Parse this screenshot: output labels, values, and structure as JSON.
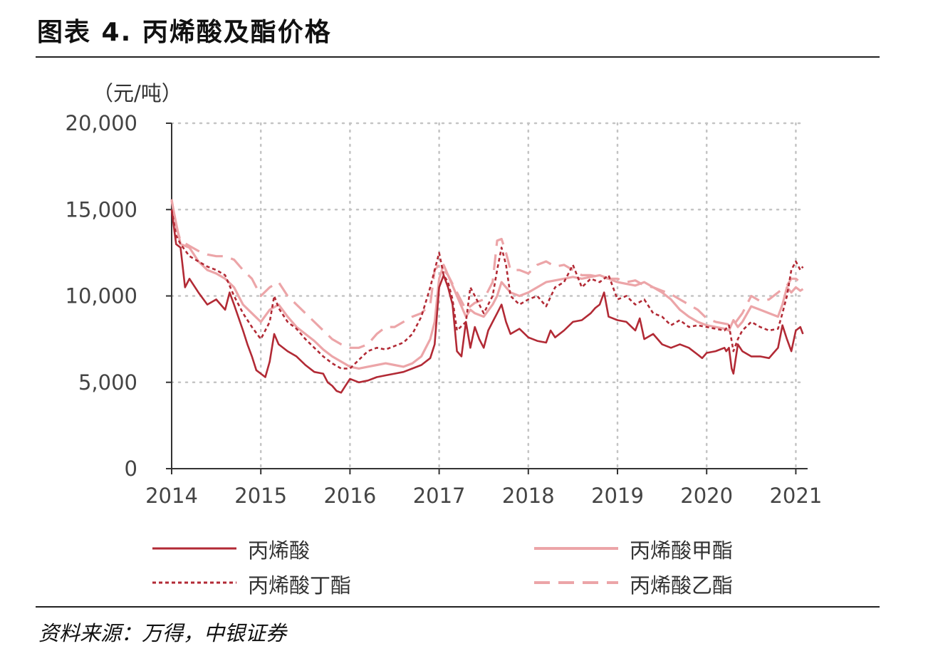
{
  "title": "图表 4. 丙烯酸及酯价格",
  "source": "资料来源：万得，中银证券",
  "chart_data": {
    "type": "line",
    "ylabel": "（元/吨）",
    "ylim": [
      0,
      20000
    ],
    "xlim": [
      2014.0,
      2021.1
    ],
    "y_ticks": [
      0,
      5000,
      10000,
      15000,
      20000
    ],
    "y_tick_labels": [
      "0",
      "5,000",
      "10,000",
      "15,000",
      "20,000"
    ],
    "x_ticks": [
      2014,
      2015,
      2016,
      2017,
      2018,
      2019,
      2020,
      2021
    ],
    "x_tick_labels": [
      "2014",
      "2015",
      "2016",
      "2017",
      "2018",
      "2019",
      "2020",
      "2021"
    ],
    "grid": true,
    "legend_position": "bottom",
    "series": [
      {
        "name": "丙烯酸",
        "color": "#b22a35",
        "style": "solid",
        "x": [
          2014.0,
          2014.05,
          2014.1,
          2014.15,
          2014.2,
          2014.3,
          2014.4,
          2014.5,
          2014.6,
          2014.65,
          2014.7,
          2014.8,
          2014.85,
          2014.9,
          2014.95,
          2015.0,
          2015.05,
          2015.1,
          2015.15,
          2015.2,
          2015.3,
          2015.4,
          2015.5,
          2015.6,
          2015.7,
          2015.75,
          2015.8,
          2015.85,
          2015.9,
          2015.95,
          2016.0,
          2016.1,
          2016.2,
          2016.3,
          2016.4,
          2016.5,
          2016.6,
          2016.7,
          2016.8,
          2016.9,
          2016.95,
          2017.0,
          2017.05,
          2017.1,
          2017.15,
          2017.2,
          2017.25,
          2017.3,
          2017.35,
          2017.4,
          2017.45,
          2017.5,
          2017.55,
          2017.6,
          2017.65,
          2017.7,
          2017.75,
          2017.8,
          2017.9,
          2018.0,
          2018.1,
          2018.2,
          2018.25,
          2018.3,
          2018.4,
          2018.5,
          2018.6,
          2018.7,
          2018.75,
          2018.8,
          2018.85,
          2018.9,
          2019.0,
          2019.1,
          2019.2,
          2019.25,
          2019.3,
          2019.4,
          2019.5,
          2019.6,
          2019.7,
          2019.8,
          2019.9,
          2019.95,
          2020.0,
          2020.1,
          2020.2,
          2020.22,
          2020.25,
          2020.28,
          2020.3,
          2020.35,
          2020.4,
          2020.5,
          2020.6,
          2020.7,
          2020.75,
          2020.8,
          2020.85,
          2020.9,
          2020.95,
          2021.0,
          2021.05,
          2021.08
        ],
        "values": [
          15000,
          13000,
          12800,
          10500,
          11000,
          10200,
          9500,
          9800,
          9200,
          10200,
          9500,
          8000,
          7200,
          6500,
          5700,
          5500,
          5300,
          6200,
          7800,
          7200,
          6800,
          6500,
          6000,
          5600,
          5500,
          5000,
          4800,
          4500,
          4400,
          4800,
          5200,
          5000,
          5100,
          5300,
          5400,
          5500,
          5600,
          5800,
          6000,
          6400,
          7200,
          10500,
          11200,
          10500,
          9500,
          6800,
          6500,
          8500,
          7000,
          8200,
          7500,
          7000,
          8000,
          8500,
          9000,
          9500,
          8500,
          7800,
          8100,
          7600,
          7400,
          7300,
          8000,
          7600,
          8000,
          8500,
          8600,
          9000,
          9300,
          9500,
          10200,
          8800,
          8600,
          8500,
          8000,
          8700,
          7500,
          7800,
          7200,
          7000,
          7200,
          7000,
          6600,
          6400,
          6700,
          6800,
          7000,
          6800,
          7000,
          5800,
          5500,
          7200,
          6800,
          6500,
          6500,
          6400,
          6700,
          7000,
          8300,
          7500,
          6800,
          8000,
          8200,
          7800
        ]
      },
      {
        "name": "丙烯酸甲酯",
        "color": "#eca5a8",
        "style": "solid",
        "x": [
          2014.0,
          2014.05,
          2014.1,
          2014.2,
          2014.3,
          2014.4,
          2014.5,
          2014.6,
          2014.7,
          2014.8,
          2014.9,
          2015.0,
          2015.1,
          2015.2,
          2015.3,
          2015.4,
          2015.5,
          2015.6,
          2015.7,
          2015.8,
          2015.9,
          2016.0,
          2016.1,
          2016.2,
          2016.3,
          2016.4,
          2016.5,
          2016.6,
          2016.7,
          2016.8,
          2016.9,
          2016.95,
          2017.0,
          2017.05,
          2017.1,
          2017.2,
          2017.3,
          2017.35,
          2017.4,
          2017.5,
          2017.6,
          2017.65,
          2017.7,
          2017.75,
          2017.8,
          2017.9,
          2018.0,
          2018.1,
          2018.2,
          2018.3,
          2018.4,
          2018.5,
          2018.6,
          2018.7,
          2018.8,
          2018.9,
          2019.0,
          2019.1,
          2019.2,
          2019.3,
          2019.4,
          2019.5,
          2019.6,
          2019.7,
          2019.8,
          2019.9,
          2020.0,
          2020.1,
          2020.2,
          2020.25,
          2020.3,
          2020.35,
          2020.4,
          2020.5,
          2020.6,
          2020.7,
          2020.8,
          2020.85,
          2020.9,
          2020.95,
          2021.0,
          2021.05,
          2021.08
        ],
        "values": [
          15500,
          14200,
          13000,
          12800,
          12000,
          11500,
          11300,
          11000,
          10500,
          9500,
          9000,
          8500,
          9200,
          9500,
          8800,
          8200,
          7800,
          7400,
          6900,
          6500,
          6200,
          5900,
          5800,
          5900,
          6000,
          6100,
          6000,
          5900,
          6100,
          6500,
          7500,
          8500,
          11000,
          11800,
          11200,
          10000,
          8800,
          9200,
          9000,
          8800,
          9500,
          10000,
          10800,
          10500,
          10200,
          10000,
          10200,
          10500,
          10800,
          10900,
          11000,
          11100,
          11000,
          11100,
          11200,
          11000,
          10800,
          10700,
          10600,
          10800,
          10500,
          10200,
          9800,
          9200,
          8800,
          8500,
          8300,
          8200,
          8100,
          8000,
          8600,
          8200,
          8500,
          9400,
          9200,
          9000,
          8800,
          9500,
          10500,
          10200,
          10500,
          10300,
          10400
        ]
      },
      {
        "name": "丙烯酸丁酯",
        "color": "#b22a35",
        "style": "dotted",
        "x": [
          2014.0,
          2014.05,
          2014.1,
          2014.2,
          2014.3,
          2014.4,
          2014.5,
          2014.6,
          2014.7,
          2014.8,
          2014.9,
          2015.0,
          2015.1,
          2015.15,
          2015.2,
          2015.3,
          2015.4,
          2015.5,
          2015.6,
          2015.7,
          2015.8,
          2015.9,
          2016.0,
          2016.1,
          2016.2,
          2016.3,
          2016.4,
          2016.5,
          2016.6,
          2016.7,
          2016.8,
          2016.9,
          2016.95,
          2017.0,
          2017.05,
          2017.1,
          2017.15,
          2017.2,
          2017.3,
          2017.35,
          2017.4,
          2017.5,
          2017.6,
          2017.65,
          2017.7,
          2017.75,
          2017.8,
          2017.9,
          2018.0,
          2018.1,
          2018.2,
          2018.3,
          2018.4,
          2018.5,
          2018.6,
          2018.7,
          2018.8,
          2018.9,
          2019.0,
          2019.1,
          2019.2,
          2019.3,
          2019.4,
          2019.5,
          2019.6,
          2019.7,
          2019.8,
          2019.9,
          2020.0,
          2020.1,
          2020.2,
          2020.25,
          2020.3,
          2020.35,
          2020.4,
          2020.5,
          2020.6,
          2020.7,
          2020.8,
          2020.85,
          2020.9,
          2020.95,
          2021.0,
          2021.05,
          2021.08
        ],
        "values": [
          15000,
          13500,
          13000,
          12300,
          12000,
          11700,
          11500,
          11200,
          10000,
          9000,
          8200,
          7500,
          8500,
          10000,
          9300,
          8500,
          8100,
          7500,
          7000,
          6500,
          6100,
          5800,
          5800,
          6300,
          6800,
          7000,
          6900,
          7100,
          7300,
          7800,
          8800,
          10500,
          11500,
          12500,
          11200,
          10800,
          9800,
          8000,
          8500,
          10500,
          10000,
          9000,
          10000,
          11500,
          12800,
          11800,
          10000,
          9500,
          9800,
          10000,
          9400,
          10500,
          10800,
          11800,
          10500,
          11000,
          10800,
          11200,
          9800,
          10000,
          9500,
          9800,
          9000,
          8800,
          8300,
          8600,
          8200,
          8300,
          8200,
          8100,
          8000,
          8300,
          6800,
          7500,
          8000,
          8500,
          8200,
          8000,
          8100,
          9000,
          10000,
          11500,
          12000,
          11500,
          11700
        ]
      },
      {
        "name": "丙烯酸乙酯",
        "color": "#eca5a8",
        "style": "dashed",
        "x": [
          2014.0,
          2014.05,
          2014.1,
          2014.2,
          2014.3,
          2014.4,
          2014.5,
          2014.6,
          2014.7,
          2014.8,
          2014.9,
          2015.0,
          2015.1,
          2015.2,
          2015.3,
          2015.4,
          2015.5,
          2015.6,
          2015.7,
          2015.8,
          2015.9,
          2016.0,
          2016.1,
          2016.2,
          2016.3,
          2016.4,
          2016.5,
          2016.6,
          2016.7,
          2016.8,
          2016.9,
          2016.95,
          2017.0,
          2017.05,
          2017.1,
          2017.2,
          2017.3,
          2017.4,
          2017.5,
          2017.6,
          2017.65,
          2017.7,
          2017.75,
          2017.8,
          2017.9,
          2018.0,
          2018.1,
          2018.2,
          2018.3,
          2018.4,
          2018.5,
          2018.6,
          2018.7,
          2018.8,
          2018.9,
          2019.0,
          2019.1,
          2019.2,
          2019.3,
          2019.4,
          2019.5,
          2019.6,
          2019.7,
          2019.8,
          2019.9,
          2020.0,
          2020.1,
          2020.2,
          2020.3,
          2020.4,
          2020.5,
          2020.6,
          2020.7,
          2020.8,
          2020.9,
          2020.95,
          2021.0,
          2021.05,
          2021.08
        ],
        "values": [
          15600,
          14000,
          13200,
          12900,
          12600,
          12400,
          12300,
          12300,
          12100,
          11500,
          11000,
          10000,
          10500,
          10800,
          10000,
          9500,
          9000,
          8500,
          8000,
          7500,
          7200,
          7000,
          7000,
          7200,
          7800,
          8200,
          8200,
          8500,
          8800,
          9000,
          9500,
          11500,
          11800,
          11500,
          11200,
          10200,
          9200,
          9600,
          9800,
          10800,
          13200,
          13300,
          12500,
          11500,
          11500,
          11300,
          11800,
          12000,
          11700,
          11800,
          11500,
          11200,
          11200,
          11100,
          11000,
          11000,
          10800,
          10900,
          10600,
          10500,
          10300,
          10100,
          9800,
          9500,
          9200,
          8700,
          8500,
          8400,
          8300,
          9000,
          10000,
          9700,
          9800,
          10200,
          10600,
          11000,
          11000,
          10800,
          10700
        ]
      }
    ]
  }
}
